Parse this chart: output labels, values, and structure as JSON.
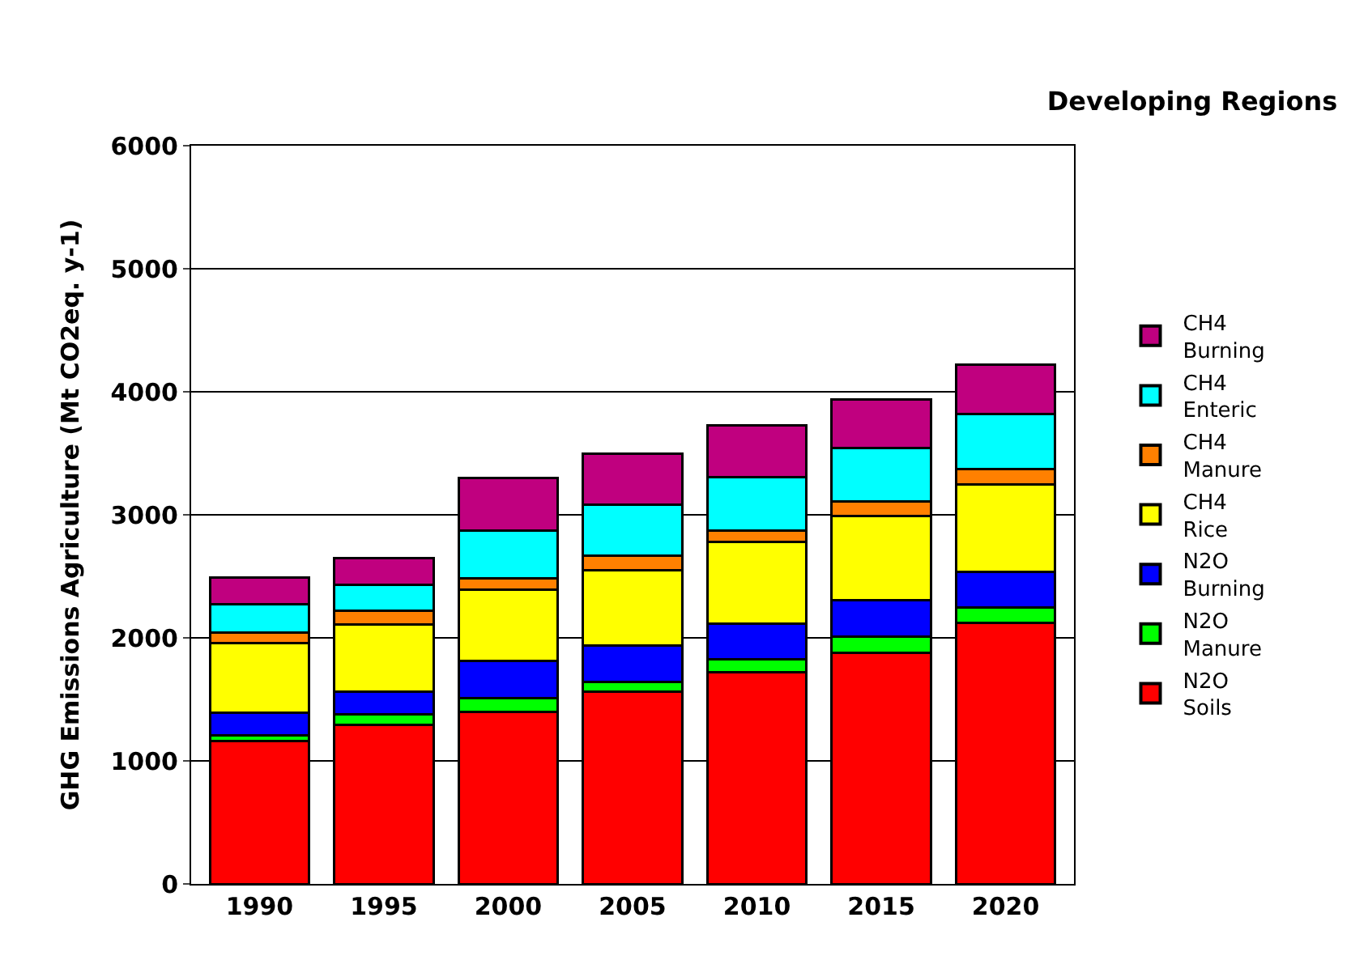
{
  "chart_data": {
    "type": "bar",
    "stacked": true,
    "title": "Developing Regions",
    "ylabel": "GHG Emissions Agriculture (Mt CO2eq. y-1)",
    "categories": [
      "1990",
      "1995",
      "2000",
      "2005",
      "2010",
      "2015",
      "2020"
    ],
    "series": [
      {
        "name": "N2O\nSoils",
        "color": "#ff0000",
        "values": [
          1160,
          1290,
          1400,
          1560,
          1720,
          1880,
          2120
        ]
      },
      {
        "name": "N2O\nManure",
        "color": "#00ff00",
        "values": [
          50,
          90,
          110,
          80,
          105,
          130,
          125
        ]
      },
      {
        "name": "N2O\nBurning",
        "color": "#0000ff",
        "values": [
          180,
          185,
          300,
          295,
          290,
          295,
          290
        ]
      },
      {
        "name": "CH4\nRice",
        "color": "#ffff00",
        "values": [
          570,
          545,
          580,
          615,
          665,
          685,
          715
        ]
      },
      {
        "name": "CH4\nManure",
        "color": "#ff8000",
        "values": [
          80,
          110,
          95,
          120,
          95,
          120,
          120
        ]
      },
      {
        "name": "CH4\nEnteric",
        "color": "#00ffff",
        "values": [
          235,
          210,
          385,
          415,
          430,
          435,
          450
        ]
      },
      {
        "name": "CH4\nBurning",
        "color": "#c0007f",
        "values": [
          215,
          220,
          430,
          415,
          425,
          395,
          400
        ]
      }
    ],
    "ylim": [
      0,
      6000
    ],
    "yticks": [
      0,
      1000,
      2000,
      3000,
      4000,
      5000,
      6000
    ],
    "grid": "y",
    "legend": "right"
  }
}
